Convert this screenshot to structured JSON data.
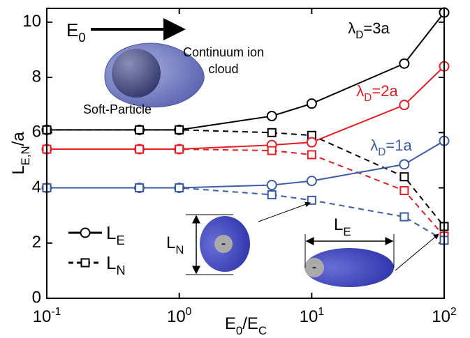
{
  "chart_data": {
    "type": "line",
    "x_label": [
      {
        "text": "E"
      },
      {
        "sub": "0"
      },
      {
        "text": "/E"
      },
      {
        "sub": "C"
      }
    ],
    "y_label": [
      {
        "text": "L"
      },
      {
        "sub": "E,N"
      },
      {
        "text": "/a"
      }
    ],
    "x": [
      0.1,
      0.5,
      1,
      5,
      10,
      50,
      100
    ],
    "xlim": [
      0.1,
      100
    ],
    "xlog": true,
    "xticks": [
      {
        "value": 0.1,
        "label": "10-1"
      },
      {
        "value": 1,
        "label": "100"
      },
      {
        "value": 10,
        "label": "101"
      },
      {
        "value": 100,
        "label": "102"
      }
    ],
    "ylim": [
      0,
      10.5
    ],
    "yticks": [
      0,
      2,
      4,
      6,
      8,
      10
    ],
    "groups": [
      {
        "label": [
          {
            "text": "λ"
          },
          {
            "sub": "D"
          },
          {
            "text": "=3a"
          }
        ],
        "color": "#000000",
        "series": [
          {
            "marker": "circle",
            "dashed": false,
            "values": [
              6.1,
              6.1,
              6.1,
              6.6,
              7.05,
              8.5,
              10.35
            ]
          },
          {
            "marker": "square",
            "dashed": true,
            "values": [
              6.1,
              6.1,
              6.1,
              6.0,
              5.9,
              4.4,
              2.6
            ]
          }
        ]
      },
      {
        "label": [
          {
            "text": "λ"
          },
          {
            "sub": "D"
          },
          {
            "text": "=2a"
          }
        ],
        "color": "#e51d23",
        "series": [
          {
            "marker": "circle",
            "dashed": false,
            "values": [
              5.4,
              5.4,
              5.4,
              5.55,
              5.65,
              7.0,
              8.4
            ]
          },
          {
            "marker": "square",
            "dashed": true,
            "values": [
              5.4,
              5.4,
              5.4,
              5.35,
              5.2,
              3.9,
              2.25
            ]
          }
        ]
      },
      {
        "label": [
          {
            "text": "λ"
          },
          {
            "sub": "D"
          },
          {
            "text": "=1a"
          }
        ],
        "color": "#3b5ba8",
        "series": [
          {
            "marker": "circle",
            "dashed": false,
            "values": [
              4.0,
              4.0,
              4.0,
              4.1,
              4.25,
              4.85,
              5.7
            ]
          },
          {
            "marker": "square",
            "dashed": true,
            "values": [
              4.0,
              4.0,
              4.0,
              3.75,
              3.55,
              2.95,
              2.1
            ]
          }
        ]
      }
    ],
    "legend": [
      {
        "label": [
          {
            "text": "L"
          },
          {
            "sub": "E"
          }
        ],
        "marker": "circle",
        "dashed": false
      },
      {
        "label": [
          {
            "text": "L"
          },
          {
            "sub": "N"
          }
        ],
        "marker": "square",
        "dashed": true
      }
    ],
    "annotations": {
      "field": [
        {
          "text": "E"
        },
        {
          "sub": "0"
        }
      ],
      "cloud_line1": "Continuum ion",
      "cloud_line2": "cloud",
      "particle": "Soft-Particle",
      "inset_ln": [
        {
          "text": "L"
        },
        {
          "sub": "N"
        }
      ],
      "inset_le": [
        {
          "text": "L"
        },
        {
          "sub": "E"
        }
      ],
      "charge": "-"
    }
  }
}
